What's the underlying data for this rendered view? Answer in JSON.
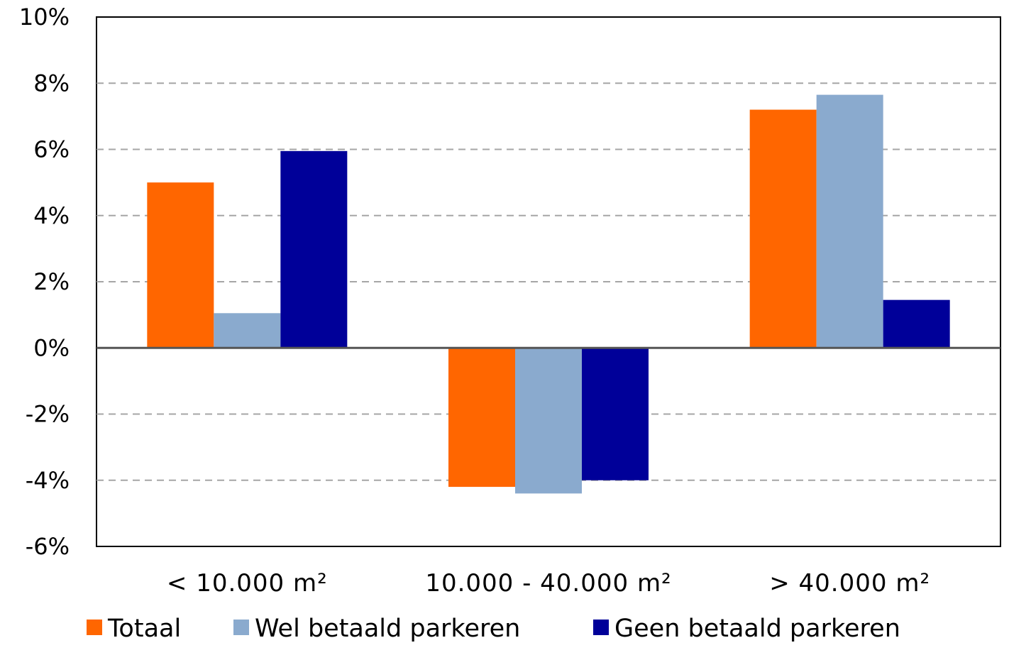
{
  "chart_data": {
    "type": "bar",
    "title": "",
    "xlabel": "",
    "ylabel": "",
    "categories": [
      "< 10.000 m²",
      "10.000 - 40.000 m²",
      "> 40.000 m²"
    ],
    "series": [
      {
        "name": "Totaal",
        "color": "#FF6600",
        "values": [
          5.0,
          -4.2,
          7.2
        ]
      },
      {
        "name": "Wel betaald parkeren",
        "color": "#8AAACE",
        "values": [
          1.05,
          -4.4,
          7.65
        ]
      },
      {
        "name": "Geen betaald parkeren",
        "color": "#000099",
        "values": [
          5.95,
          -4.0,
          1.45
        ]
      }
    ],
    "ylim": [
      -6,
      10
    ],
    "yticks": [
      -6,
      -4,
      -2,
      0,
      2,
      4,
      6,
      8,
      10
    ],
    "ytick_labels": [
      "-6%",
      "-4%",
      "-2%",
      "0%",
      "2%",
      "4%",
      "6%",
      "8%",
      "10%"
    ],
    "grid": "horizontal dashed",
    "legend_position": "bottom"
  }
}
